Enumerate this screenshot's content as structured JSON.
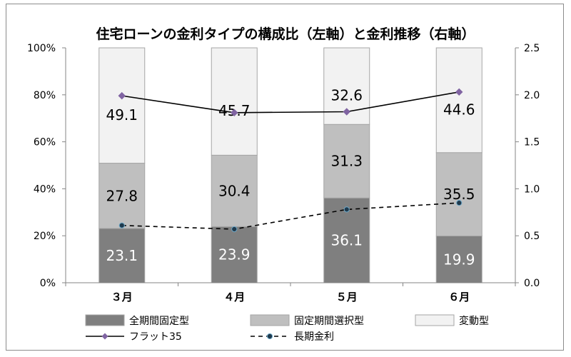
{
  "chart_data": {
    "type": "bar",
    "stacked": true,
    "title": "住宅ローンの金利タイプの構成比（左軸）と金利推移（右軸）",
    "categories": [
      "３月",
      "４月",
      "５月",
      "６月"
    ],
    "series": [
      {
        "name": "全期間固定型",
        "values": [
          23.1,
          23.9,
          36.1,
          19.9
        ],
        "labels": [
          "23.1",
          "23.9",
          "36.1",
          "19.9"
        ],
        "color": "#7f7f7f",
        "label_color": "#ffffff"
      },
      {
        "name": "固定期間選択型",
        "values": [
          27.8,
          30.4,
          31.3,
          35.5
        ],
        "labels": [
          "27.8",
          "30.4",
          "31.3",
          "35.5"
        ],
        "color": "#bfbfbf",
        "label_color": "#000000"
      },
      {
        "name": "変動型",
        "values": [
          49.1,
          45.7,
          32.6,
          44.6
        ],
        "labels": [
          "49.1",
          "45.7",
          "32.6",
          "44.6"
        ],
        "color": "#f2f2f2",
        "label_color": "#000000"
      }
    ],
    "lines": [
      {
        "name": "フラット35",
        "axis": "right",
        "values": [
          1.99,
          1.81,
          1.82,
          2.03
        ],
        "style": "solid",
        "marker": "diamond",
        "marker_color": "#8064a2",
        "color": "#000000"
      },
      {
        "name": "長期金利",
        "axis": "right",
        "values": [
          0.61,
          0.57,
          0.78,
          0.85
        ],
        "style": "dashed",
        "marker": "circle",
        "marker_color": "#1f3a4d",
        "color": "#000000"
      }
    ],
    "left_axis": {
      "min": 0,
      "max": 100,
      "ticks": [
        "0%",
        "20%",
        "40%",
        "60%",
        "80%",
        "100%"
      ]
    },
    "right_axis": {
      "min": 0,
      "max": 2.5,
      "ticks": [
        "0.0",
        "0.5",
        "1.0",
        "1.5",
        "2.0",
        "2.5"
      ]
    },
    "grid": false,
    "legend": "bottom"
  }
}
